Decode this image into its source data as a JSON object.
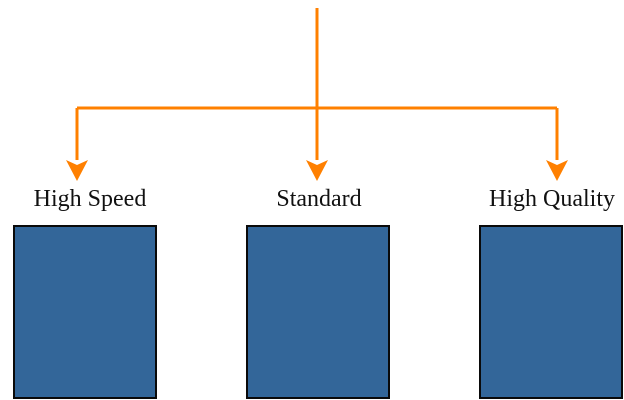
{
  "options": [
    {
      "label": "High Speed"
    },
    {
      "label": "Standard"
    },
    {
      "label": "High Quality"
    }
  ],
  "colors": {
    "arrow": "#FF8000",
    "box_fill": "#336699",
    "box_border": "#0A0A0A",
    "text": "#111111"
  }
}
